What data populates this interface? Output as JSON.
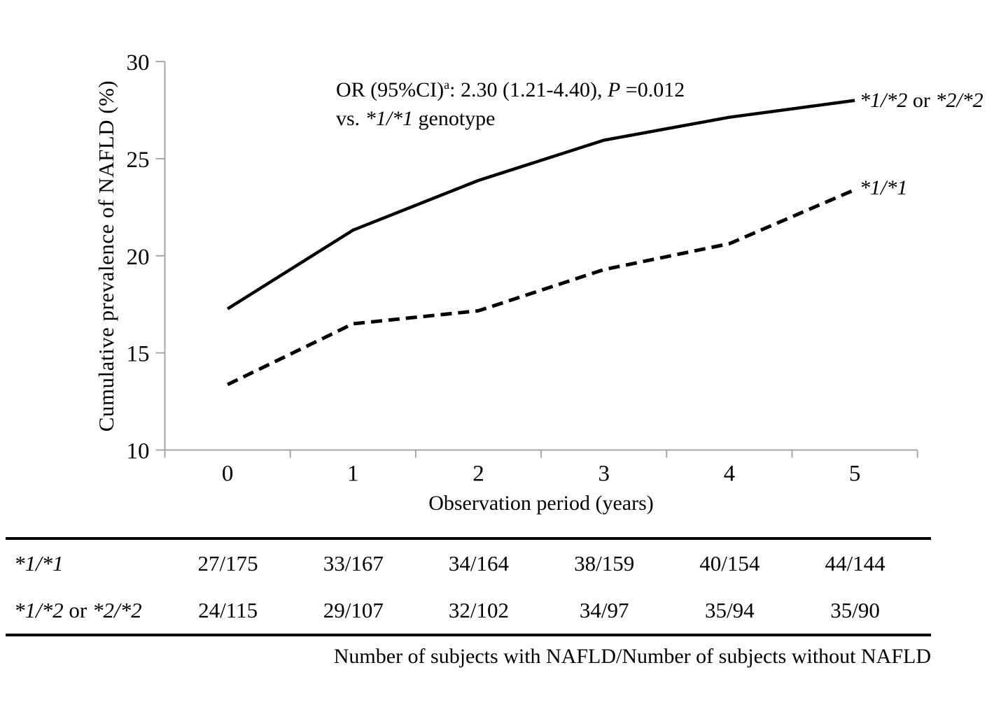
{
  "figure": {
    "background": "#ffffff",
    "text_color": "#000000",
    "axis_color": "#a6a6a6",
    "line_color": "#000000"
  },
  "annotation": {
    "line1_prefix": "OR (95%CI)",
    "line1_sup": "a",
    "line1_mid": ": 2.30 (1.21-4.40), ",
    "line1_p": "P",
    "line1_suffix": " =0.012",
    "line2_prefix": "vs. ",
    "line2_genotype": "*1/*1",
    "line2_suffix": " genotype"
  },
  "chart_data": {
    "type": "line",
    "title": "",
    "xlabel": "Observation period (years)",
    "ylabel": "Cumulative prevalence of NAFLD (%)",
    "x": [
      0,
      1,
      2,
      3,
      4,
      5
    ],
    "x_tick_labels": [
      "0",
      "1",
      "2",
      "3",
      "4",
      "5"
    ],
    "y_ticks": [
      10,
      15,
      20,
      25,
      30
    ],
    "ylim": [
      10,
      30
    ],
    "grid": false,
    "legend_position": "right-of-line-ends",
    "series": [
      {
        "name": "*1/*2 or *2/*2",
        "label_parts": [
          "*1/*2",
          " or ",
          "*2/*2"
        ],
        "style": "solid",
        "color": "#000000",
        "values": [
          17.27,
          21.32,
          23.88,
          25.95,
          27.13,
          28.0
        ]
      },
      {
        "name": "*1/*1",
        "label_parts": [
          "*1/*1",
          "",
          ""
        ],
        "style": "dashed",
        "color": "#000000",
        "values": [
          13.37,
          16.5,
          17.17,
          19.29,
          20.62,
          23.4
        ]
      }
    ]
  },
  "table": {
    "rows": [
      {
        "label_parts": [
          "*1/*1",
          "",
          ""
        ],
        "values": [
          "27/175",
          "33/167",
          "34/164",
          "38/159",
          "40/154",
          "44/144"
        ]
      },
      {
        "label_parts": [
          "*1/*2",
          " or ",
          "*2/*2"
        ],
        "values": [
          "24/115",
          "29/107",
          "32/102",
          "34/97",
          "35/94",
          "35/90"
        ]
      }
    ],
    "caption": "Number of subjects with NAFLD/Number of subjects without NAFLD"
  }
}
